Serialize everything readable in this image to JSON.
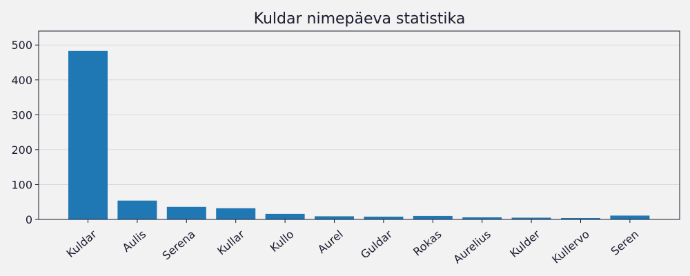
{
  "chart_data": {
    "type": "bar",
    "title": "Kuldar nimepäeva statistika",
    "xlabel": "",
    "ylabel": "",
    "categories": [
      "Kuldar",
      "Aulis",
      "Serena",
      "Kullar",
      "Kullo",
      "Aurel",
      "Guldar",
      "Rokas",
      "Aurelius",
      "Kulder",
      "Kullervo",
      "Seren"
    ],
    "values": [
      483,
      54,
      36,
      32,
      16,
      9,
      8,
      10,
      6,
      5,
      4,
      11
    ],
    "ylim": [
      0,
      540
    ],
    "yticks": [
      0,
      100,
      200,
      300,
      400,
      500
    ],
    "grid": "y",
    "bar_color": "#1f77b4",
    "legend": "none"
  }
}
